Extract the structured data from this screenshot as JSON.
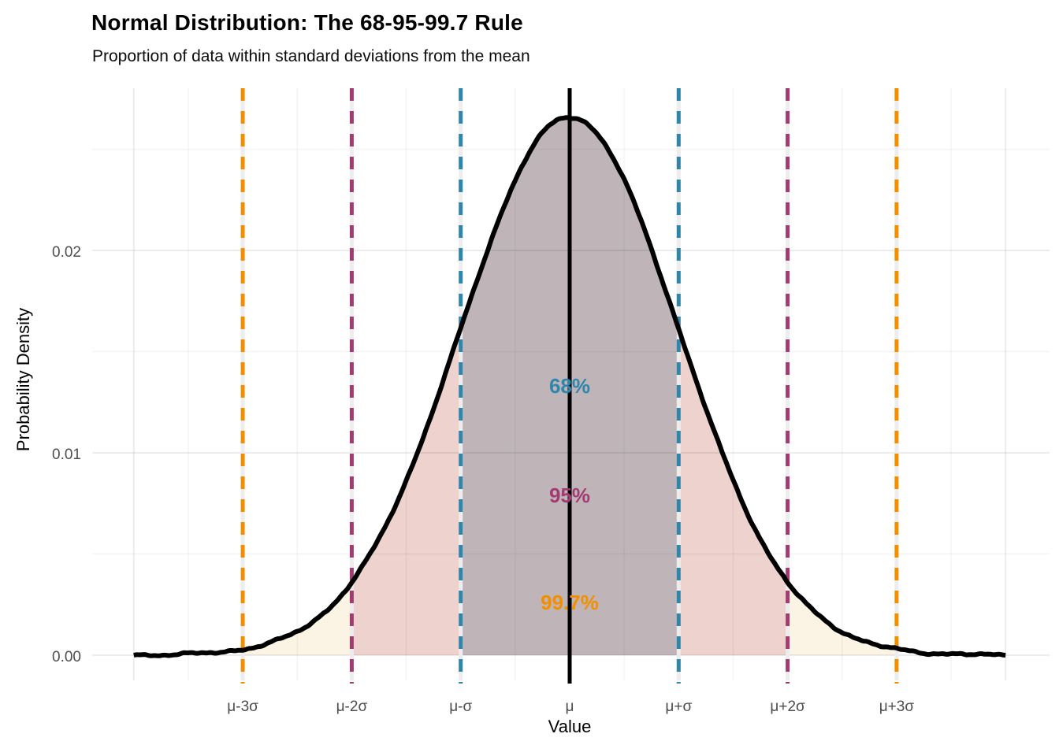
{
  "chart_data": {
    "type": "area",
    "title": "Normal Distribution: The 68-95-99.7 Rule",
    "subtitle": "Proportion of data within standard deviations from the mean",
    "xlabel": "Value",
    "ylabel": "Probability Density",
    "x_ticks": [
      {
        "sigma": -3,
        "label": "μ-3σ"
      },
      {
        "sigma": -2,
        "label": "μ-2σ"
      },
      {
        "sigma": -1,
        "label": "μ-σ"
      },
      {
        "sigma": 0,
        "label": "μ"
      },
      {
        "sigma": 1,
        "label": "μ+σ"
      },
      {
        "sigma": 2,
        "label": "μ+2σ"
      },
      {
        "sigma": 3,
        "label": "μ+3σ"
      }
    ],
    "y_ticks": [
      {
        "value": 0.0,
        "label": "0.00"
      },
      {
        "value": 0.01,
        "label": "0.01"
      },
      {
        "value": 0.02,
        "label": "0.02"
      }
    ],
    "x_range_sigma": [
      -4,
      4
    ],
    "y_range": [
      0,
      0.028
    ],
    "grid": true,
    "legend": "none",
    "distribution": {
      "type": "normal",
      "mean_label": "μ",
      "sigma_label": "σ",
      "peak_density": 0.0266
    },
    "curve_samples": [
      {
        "sigma": -4.0,
        "density": 1e-05
      },
      {
        "sigma": -3.5,
        "density": 6e-05
      },
      {
        "sigma": -3.0,
        "density": 0.0003
      },
      {
        "sigma": -2.5,
        "density": 0.00117
      },
      {
        "sigma": -2.0,
        "density": 0.0036
      },
      {
        "sigma": -1.5,
        "density": 0.00864
      },
      {
        "sigma": -1.0,
        "density": 0.01613
      },
      {
        "sigma": -0.5,
        "density": 0.02348
      },
      {
        "sigma": 0.0,
        "density": 0.0266
      },
      {
        "sigma": 0.5,
        "density": 0.02348
      },
      {
        "sigma": 1.0,
        "density": 0.01613
      },
      {
        "sigma": 1.5,
        "density": 0.00864
      },
      {
        "sigma": 2.0,
        "density": 0.0036
      },
      {
        "sigma": 2.5,
        "density": 0.00117
      },
      {
        "sigma": 3.0,
        "density": 0.0003
      },
      {
        "sigma": 3.5,
        "density": 6e-05
      },
      {
        "sigma": 4.0,
        "density": 1e-05
      }
    ],
    "bands": [
      {
        "label": "68%",
        "from_sigma": -1,
        "to_sigma": 1,
        "line_color": "#2E86AB",
        "fill_color": "#BFB5B9",
        "label_y_density": 0.0133
      },
      {
        "label": "95%",
        "from_sigma": -2,
        "to_sigma": 2,
        "line_color": "#A23B72",
        "fill_color": "#EDD2CD",
        "label_y_density": 0.0079
      },
      {
        "label": "99.7%",
        "from_sigma": -3,
        "to_sigma": 3,
        "line_color": "#F18F01",
        "fill_color": "#FBF3E3",
        "label_y_density": 0.0026
      }
    ],
    "band_line_style": "dashed",
    "mean_line": {
      "sigma": 0,
      "color": "#000000",
      "style": "solid"
    },
    "curve_color": "#000000",
    "colors": {
      "background": "#FFFFFF",
      "grid_major": "#E8E8E8",
      "grid_minor": "#F2F2F2",
      "dash_underlay": "#EDEDED",
      "tick_label": "#4D4D4D",
      "title": "#000000"
    }
  }
}
